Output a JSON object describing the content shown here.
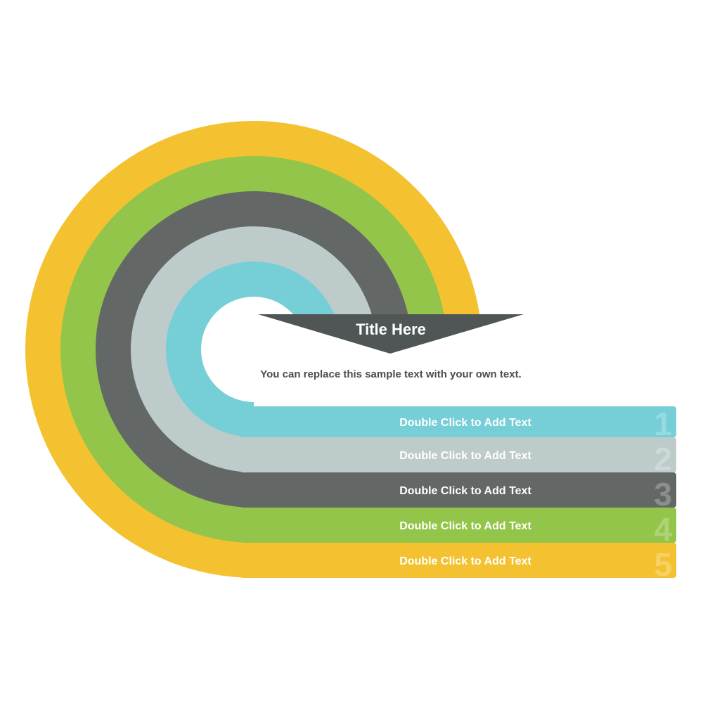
{
  "title": "Title Here",
  "subtitle": "You can replace this sample text with your own text.",
  "colors": {
    "banner": "#505556",
    "text": "#4d4d4d"
  },
  "items": [
    {
      "number": "1",
      "label": "Double Click to Add Text",
      "color": "#76ced7"
    },
    {
      "number": "2",
      "label": "Double Click to Add Text",
      "color": "#bdcbcb"
    },
    {
      "number": "3",
      "label": "Double Click to Add Text",
      "color": "#636867"
    },
    {
      "number": "4",
      "label": "Double Click to Add Text",
      "color": "#92c549"
    },
    {
      "number": "5",
      "label": "Double Click to Add Text",
      "color": "#f4c230"
    }
  ]
}
